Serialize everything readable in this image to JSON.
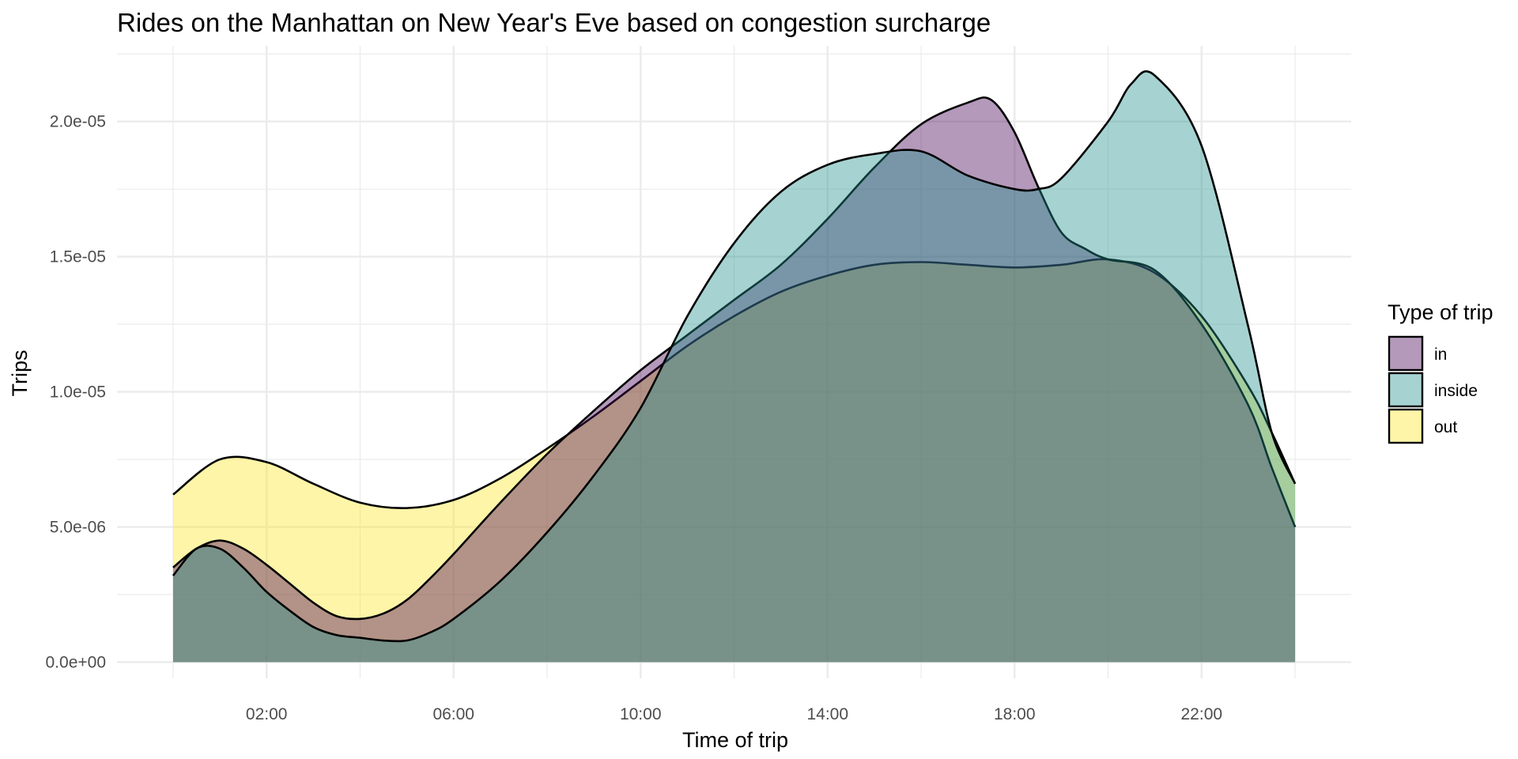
{
  "chart_data": {
    "type": "area",
    "title": "Rides on the Manhattan on New Year's Eve based on congestion surcharge",
    "xlabel": "Time of trip",
    "ylabel": "Trips",
    "xlim": [
      -1.2,
      25.2
    ],
    "ylim": [
      -6e-07,
      2.28e-05
    ],
    "x_ticks": [
      {
        "value": 2,
        "label": "02:00"
      },
      {
        "value": 6,
        "label": "06:00"
      },
      {
        "value": 10,
        "label": "10:00"
      },
      {
        "value": 14,
        "label": "14:00"
      },
      {
        "value": 18,
        "label": "18:00"
      },
      {
        "value": 22,
        "label": "22:00"
      }
    ],
    "y_ticks": [
      {
        "value": 0,
        "label": "0.0e+00"
      },
      {
        "value": 5e-06,
        "label": "5.0e-06"
      },
      {
        "value": 1e-05,
        "label": "1.0e-05"
      },
      {
        "value": 1.5e-05,
        "label": "1.5e-05"
      },
      {
        "value": 2e-05,
        "label": "2.0e-05"
      }
    ],
    "grid": true,
    "legend_position": "right",
    "legend_title": "Type of trip",
    "series": [
      {
        "name": "out",
        "color": "#FDE725",
        "x": [
          0,
          1,
          2,
          3,
          4,
          5,
          6,
          7,
          8,
          9,
          10,
          11,
          12,
          13,
          14,
          15,
          16,
          17,
          18,
          19,
          20,
          21,
          22,
          23,
          23.5,
          24
        ],
        "values": [
          6.2e-06,
          7.5e-06,
          7.4e-06,
          6.6e-06,
          5.9e-06,
          5.7e-06,
          6e-06,
          6.8e-06,
          7.9e-06,
          9.1e-06,
          1.04e-05,
          1.17e-05,
          1.28e-05,
          1.37e-05,
          1.43e-05,
          1.47e-05,
          1.48e-05,
          1.47e-05,
          1.46e-05,
          1.47e-05,
          1.49e-05,
          1.44e-05,
          1.28e-05,
          1.02e-05,
          8.5e-06,
          6.6e-06
        ]
      },
      {
        "name": "in",
        "color": "#440154",
        "x": [
          0,
          0.5,
          1,
          1.5,
          2,
          2.5,
          3,
          3.5,
          4,
          4.5,
          5,
          5.5,
          6,
          7,
          8,
          9,
          10,
          11,
          12,
          13,
          14,
          15,
          16,
          17,
          17.5,
          18,
          18.5,
          19,
          19.5,
          20,
          21,
          22,
          23,
          23.5,
          24
        ],
        "values": [
          3.5e-06,
          4.2e-06,
          4.5e-06,
          4.2e-06,
          3.6e-06,
          2.9e-06,
          2.2e-06,
          1.7e-06,
          1.6e-06,
          1.8e-06,
          2.3e-06,
          3.1e-06,
          4e-06,
          5.9e-06,
          7.7e-06,
          9.3e-06,
          1.08e-05,
          1.21e-05,
          1.34e-05,
          1.47e-05,
          1.64e-05,
          1.83e-05,
          1.99e-05,
          2.07e-05,
          2.08e-05,
          1.96e-05,
          1.76e-05,
          1.59e-05,
          1.53e-05,
          1.49e-05,
          1.45e-05,
          1.25e-05,
          9.5e-06,
          7.2e-06,
          5e-06
        ]
      },
      {
        "name": "inside",
        "color": "#21908C",
        "x": [
          0,
          0.5,
          1,
          1.5,
          2,
          2.5,
          3,
          3.5,
          4,
          4.5,
          5,
          5.5,
          6,
          7,
          8,
          9,
          10,
          11,
          12,
          13,
          14,
          15,
          16,
          17,
          18,
          18.5,
          19,
          20,
          20.5,
          21,
          22,
          23,
          23.5,
          24
        ],
        "values": [
          3.2e-06,
          4.2e-06,
          4.2e-06,
          3.5e-06,
          2.6e-06,
          1.9e-06,
          1.3e-06,
          1e-06,
          9e-07,
          8e-07,
          8e-07,
          1.1e-06,
          1.6e-06,
          3e-06,
          4.8e-06,
          6.9e-06,
          9.4e-06,
          1.28e-05,
          1.55e-05,
          1.74e-05,
          1.84e-05,
          1.88e-05,
          1.89e-05,
          1.8e-05,
          1.75e-05,
          1.75e-05,
          1.79e-05,
          2e-05,
          2.14e-05,
          2.17e-05,
          1.91e-05,
          1.24e-05,
          8.5e-06,
          6.6e-06
        ]
      }
    ],
    "legend": [
      {
        "label": "in",
        "color": "#440154"
      },
      {
        "label": "inside",
        "color": "#21908C"
      },
      {
        "label": "out",
        "color": "#FDE725"
      }
    ]
  }
}
